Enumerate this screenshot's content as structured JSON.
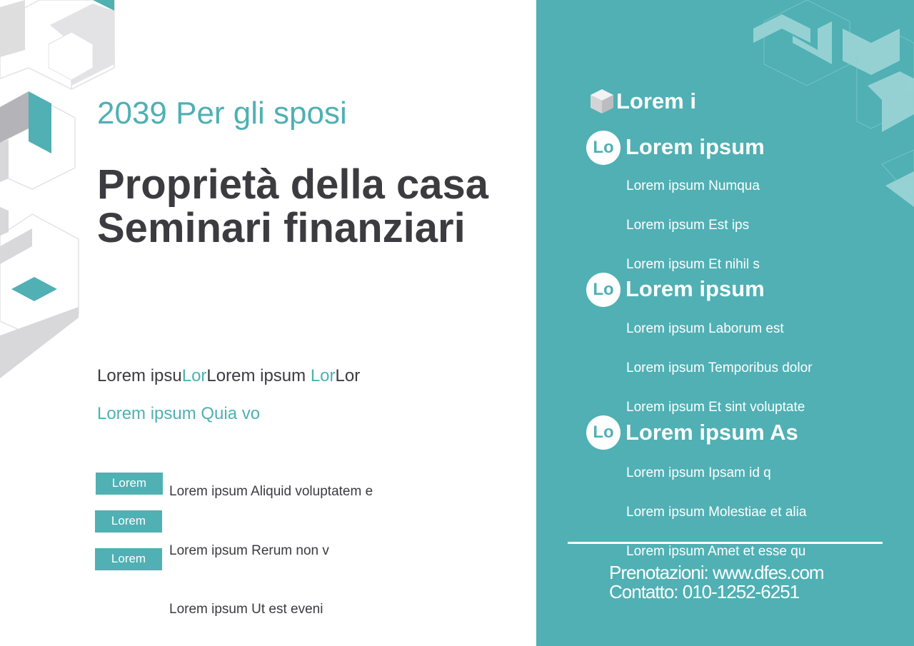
{
  "header": {
    "subtitle": "2039 Per gli sposi",
    "title_line1": "Proprietà della casa",
    "title_line2": "Seminari finanziari"
  },
  "intro": {
    "line1_parts": [
      "Lorem ipsu",
      "Lor",
      "Lorem ipsum ",
      "Lor",
      "Lor"
    ],
    "line2": "Lorem ipsum Quia vo"
  },
  "tags": [
    {
      "label": "Lorem",
      "text": "Lorem ipsum Aliquid voluptatem e"
    },
    {
      "label": "Lorem",
      "text": ""
    },
    {
      "label": "Lorem",
      "text": "Lorem ipsum Rerum non v"
    }
  ],
  "extra_text": "Lorem ipsum Ut est eveni",
  "panel": {
    "heading": "Lorem i",
    "sections": [
      {
        "badge": "Lo",
        "title": "Lorem ipsum",
        "items": [
          "Lorem ipsum Numqua",
          "Lorem ipsum Est ips",
          "Lorem ipsum Et nihil s"
        ]
      },
      {
        "badge": "Lo",
        "title": "Lorem ipsum",
        "items": [
          "Lorem ipsum Laborum est",
          "Lorem ipsum Temporibus dolor",
          "Lorem ipsum Et sint voluptate"
        ]
      },
      {
        "badge": "Lo",
        "title": "Lorem ipsum As",
        "items": [
          "Lorem ipsum Ipsam id q",
          "Lorem ipsum Molestiae et alia",
          "Lorem ipsum Amet et esse qu"
        ]
      }
    ],
    "booking": "Prenotazioni: www.dfes.com",
    "contact": "Contatto: 010-1252-6251"
  },
  "colors": {
    "accent": "#50b0b4",
    "text": "#3b3b40"
  }
}
